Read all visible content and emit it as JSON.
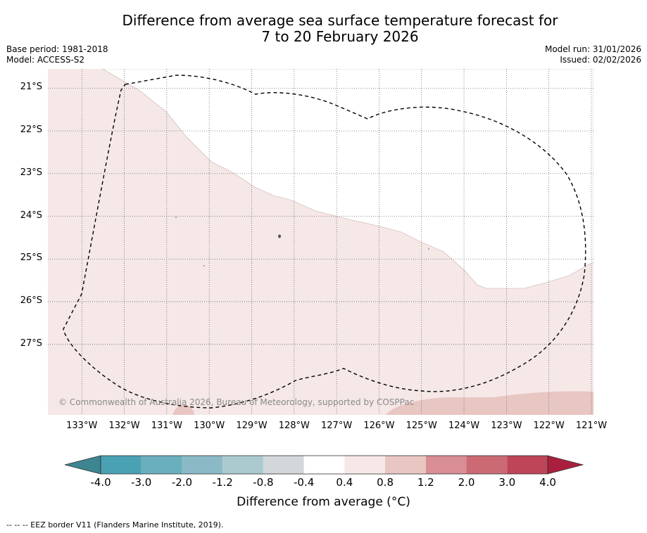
{
  "title": {
    "line1": "Difference from average sea surface temperature forecast for",
    "line2": "7 to 20 February 2026"
  },
  "meta": {
    "base_period": "Base period: 1981-2018",
    "model": "Model: ACCESS-S2",
    "model_run": "Model run: 31/01/2026",
    "issued": "Issued: 02/02/2026"
  },
  "map": {
    "latitude_labels": [
      "21°S",
      "22°S",
      "23°S",
      "24°S",
      "25°S",
      "26°S",
      "27°S"
    ],
    "longitude_labels": [
      "133°W",
      "132°W",
      "131°W",
      "130°W",
      "129°W",
      "128°W",
      "127°W",
      "126°W",
      "125°W",
      "124°W",
      "123°W",
      "122°W",
      "121°W"
    ],
    "extent": {
      "lon_west": -133.8,
      "lon_east": -120.95,
      "lat_north": -20.55,
      "lat_south": -28.65
    },
    "grid_latitudes": [
      -21,
      -22,
      -23,
      -24,
      -25,
      -26,
      -27
    ],
    "grid_longitudes": [
      -133,
      -132,
      -131,
      -130,
      -129,
      -128,
      -127,
      -126,
      -125,
      -124,
      -123,
      -122,
      -121
    ],
    "anomaly_regions": [
      {
        "category": "0.4 to 0.8",
        "description": "south-west portion of the map"
      },
      {
        "category": "-0.4 to 0.4",
        "description": "north-east portion of the map"
      },
      {
        "category": "0.8 to 1.2",
        "description": "southern edge"
      }
    ],
    "copyright": "© Commonwealth of Australia 2026, Bureau of Meteorology, supported by COSPPac"
  },
  "colorbar": {
    "ticks": [
      "-4.0",
      "-3.0",
      "-2.0",
      "-1.2",
      "-0.8",
      "-0.4",
      "0.4",
      "0.8",
      "1.2",
      "2.0",
      "3.0",
      "4.0"
    ],
    "colors": [
      "#4aa1b3",
      "#6aafbe",
      "#8bbac6",
      "#abcacf",
      "#d3d7d9",
      "#ffffff",
      "#f5e8e7",
      "#e8c6c2",
      "#d98d95",
      "#cc6a73",
      "#be4457"
    ],
    "under_color": "#3d8591",
    "over_color": "#ab1f3e",
    "label": "Difference from average (",
    "unit_symbol": "°C",
    "label_close": ")"
  },
  "footer": {
    "eez_note": "-- -- -- EEZ border V11 (Flanders Marine Institute, 2019)."
  },
  "colors": {
    "map_default": "#f5e8e7",
    "warm_region": "#e8c6c2",
    "neutral_region": "#ffffff",
    "eez_line": "#000000",
    "grid_line": "#555555"
  }
}
